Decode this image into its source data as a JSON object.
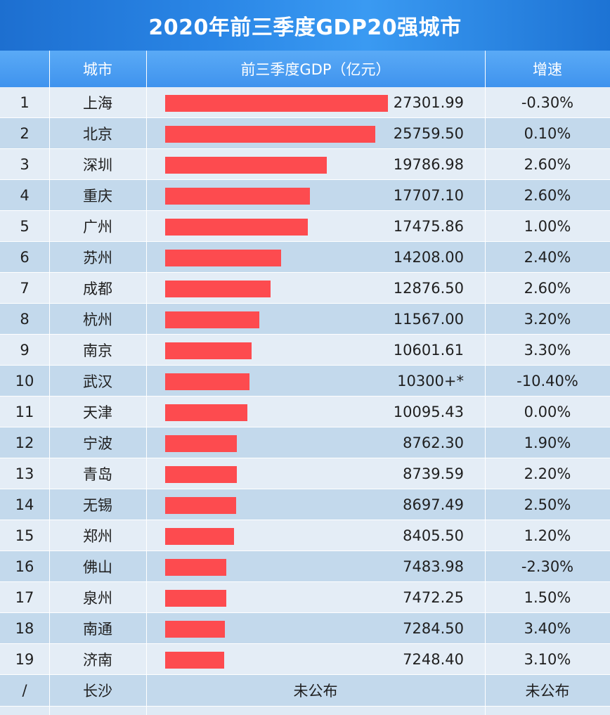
{
  "title": "2020年前三季度GDP20强城市",
  "headers": {
    "rank": "",
    "city": "城市",
    "gdp": "前三季度GDP（亿元）",
    "growth": "增速"
  },
  "colors": {
    "bar": "#fd4b4f",
    "header": "#3f93ee",
    "title_bg": "#1d6fd0"
  },
  "chart_data": {
    "type": "bar",
    "orientation": "horizontal",
    "title": "2020年前三季度GDP20强城市",
    "categories": [
      "上海",
      "北京",
      "深圳",
      "重庆",
      "广州",
      "苏州",
      "成都",
      "杭州",
      "南京",
      "武汉",
      "天津",
      "宁波",
      "青岛",
      "无锡",
      "郑州",
      "佛山",
      "泉州",
      "南通",
      "济南"
    ],
    "series": [
      {
        "name": "前三季度GDP（亿元）",
        "values": [
          27301.99,
          25759.5,
          19786.98,
          17707.1,
          17475.86,
          14208.0,
          12876.5,
          11567.0,
          10601.61,
          10300,
          10095.43,
          8762.3,
          8739.59,
          8697.49,
          8405.5,
          7483.98,
          7472.25,
          7284.5,
          7248.4
        ]
      }
    ],
    "rows": [
      {
        "rank": "1",
        "city": "上海",
        "gdp_label": "27301.99",
        "gdp": 27301.99,
        "growth": "-0.30%"
      },
      {
        "rank": "2",
        "city": "北京",
        "gdp_label": "25759.50",
        "gdp": 25759.5,
        "growth": "0.10%"
      },
      {
        "rank": "3",
        "city": "深圳",
        "gdp_label": "19786.98",
        "gdp": 19786.98,
        "growth": "2.60%"
      },
      {
        "rank": "4",
        "city": "重庆",
        "gdp_label": "17707.10",
        "gdp": 17707.1,
        "growth": "2.60%"
      },
      {
        "rank": "5",
        "city": "广州",
        "gdp_label": "17475.86",
        "gdp": 17475.86,
        "growth": "1.00%"
      },
      {
        "rank": "6",
        "city": "苏州",
        "gdp_label": "14208.00",
        "gdp": 14208.0,
        "growth": "2.40%"
      },
      {
        "rank": "7",
        "city": "成都",
        "gdp_label": "12876.50",
        "gdp": 12876.5,
        "growth": "2.60%"
      },
      {
        "rank": "8",
        "city": "杭州",
        "gdp_label": "11567.00",
        "gdp": 11567.0,
        "growth": "3.20%"
      },
      {
        "rank": "9",
        "city": "南京",
        "gdp_label": "10601.61",
        "gdp": 10601.61,
        "growth": "3.30%"
      },
      {
        "rank": "10",
        "city": "武汉",
        "gdp_label": "10300+*",
        "gdp": 10300,
        "growth": "-10.40%"
      },
      {
        "rank": "11",
        "city": "天津",
        "gdp_label": "10095.43",
        "gdp": 10095.43,
        "growth": "0.00%"
      },
      {
        "rank": "12",
        "city": "宁波",
        "gdp_label": "8762.30",
        "gdp": 8762.3,
        "growth": "1.90%"
      },
      {
        "rank": "13",
        "city": "青岛",
        "gdp_label": "8739.59",
        "gdp": 8739.59,
        "growth": "2.20%"
      },
      {
        "rank": "14",
        "city": "无锡",
        "gdp_label": "8697.49",
        "gdp": 8697.49,
        "growth": "2.50%"
      },
      {
        "rank": "15",
        "city": "郑州",
        "gdp_label": "8405.50",
        "gdp": 8405.5,
        "growth": "1.20%"
      },
      {
        "rank": "16",
        "city": "佛山",
        "gdp_label": "7483.98",
        "gdp": 7483.98,
        "growth": "-2.30%"
      },
      {
        "rank": "17",
        "city": "泉州",
        "gdp_label": "7472.25",
        "gdp": 7472.25,
        "growth": "1.50%"
      },
      {
        "rank": "18",
        "city": "南通",
        "gdp_label": "7284.50",
        "gdp": 7284.5,
        "growth": "3.40%"
      },
      {
        "rank": "19",
        "city": "济南",
        "gdp_label": "7248.40",
        "gdp": 7248.4,
        "growth": "3.10%"
      }
    ],
    "footer": {
      "rank": "/",
      "city": "长沙",
      "gdp": "未公布",
      "growth": "未公布"
    }
  }
}
